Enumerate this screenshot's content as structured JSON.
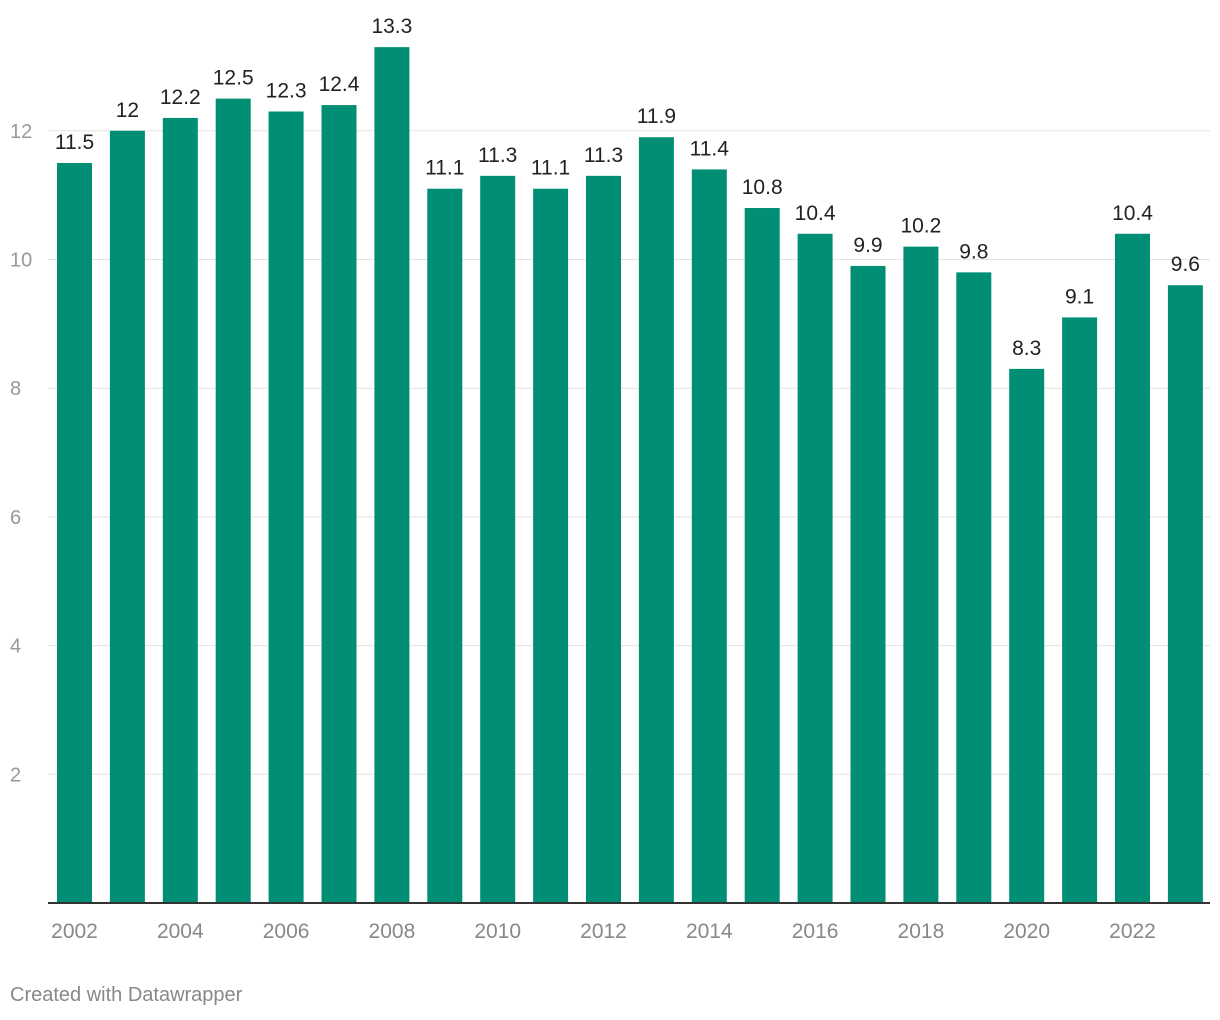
{
  "chart_data": {
    "type": "bar",
    "categories": [
      "2002",
      "2003",
      "2004",
      "2005",
      "2006",
      "2007",
      "2008",
      "2009",
      "2010",
      "2011",
      "2012",
      "2013",
      "2014",
      "2015",
      "2016",
      "2017",
      "2018",
      "2019",
      "2020",
      "2021",
      "2022",
      "2023"
    ],
    "values": [
      11.5,
      12,
      12.2,
      12.5,
      12.3,
      12.4,
      13.3,
      11.1,
      11.3,
      11.1,
      11.3,
      11.9,
      11.4,
      10.8,
      10.4,
      9.9,
      10.2,
      9.8,
      8.3,
      9.1,
      10.4,
      9.6
    ],
    "value_labels": [
      "11.5",
      "12",
      "12.2",
      "12.5",
      "12.3",
      "12.4",
      "13.3",
      "11.1",
      "11.3",
      "11.1",
      "11.3",
      "11.9",
      "11.4",
      "10.8",
      "10.4",
      "9.9",
      "10.2",
      "9.8",
      "8.3",
      "9.1",
      "10.4",
      "9.6"
    ],
    "x_tick_labels": [
      "2002",
      "2004",
      "2006",
      "2008",
      "2010",
      "2012",
      "2014",
      "2016",
      "2018",
      "2020",
      "2022"
    ],
    "y_ticks": [
      2,
      4,
      6,
      8,
      10,
      12
    ],
    "ylim": [
      0,
      14
    ],
    "title": "",
    "xlabel": "",
    "ylabel": "",
    "grid": true,
    "bar_color": "#008f74"
  },
  "footer": {
    "credit": "Created with Datawrapper"
  }
}
